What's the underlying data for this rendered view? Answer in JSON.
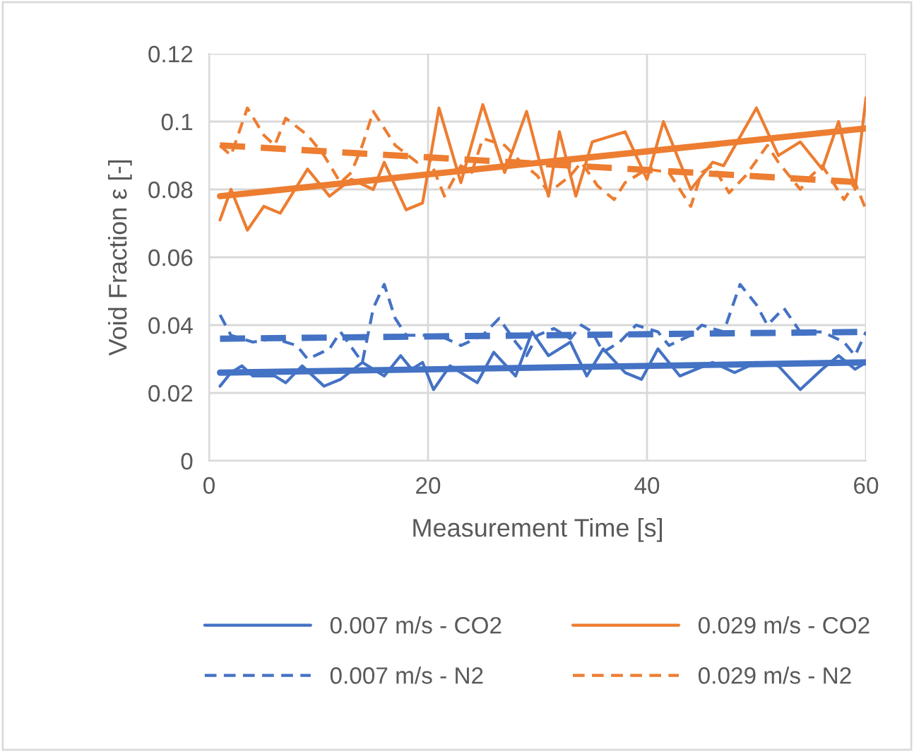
{
  "chart_data": {
    "type": "line",
    "xlabel": "Measurement Time [s]",
    "ylabel": "Void Fraction ε [-]",
    "xlim": [
      0,
      60
    ],
    "xticks": [
      0,
      20,
      40,
      60
    ],
    "ylim": [
      0,
      0.12
    ],
    "yticks": [
      0,
      0.02,
      0.04,
      0.06,
      0.08,
      0.1,
      0.12
    ],
    "grid": true,
    "legend": "bottom",
    "marker": "none",
    "series": [
      {
        "name": "0.007 m/s - CO2",
        "color": "#4472c4",
        "line_style": "solid",
        "x": [
          1,
          2,
          3,
          4,
          6,
          7,
          8.5,
          10.5,
          12,
          14,
          16,
          17.5,
          18.5,
          19.5,
          20.5,
          22,
          23.5,
          24.5,
          26,
          28,
          29.5,
          31,
          33,
          34.5,
          36,
          38,
          39.5,
          41,
          43,
          46,
          48,
          50,
          52,
          54,
          56,
          57.5,
          59,
          60
        ],
        "values": [
          0.022,
          0.026,
          0.028,
          0.025,
          0.025,
          0.023,
          0.028,
          0.022,
          0.024,
          0.029,
          0.025,
          0.031,
          0.027,
          0.029,
          0.021,
          0.028,
          0.025,
          0.023,
          0.032,
          0.025,
          0.038,
          0.031,
          0.035,
          0.025,
          0.033,
          0.026,
          0.024,
          0.033,
          0.025,
          0.029,
          0.026,
          0.029,
          0.028,
          0.021,
          0.027,
          0.031,
          0.027,
          0.029
        ]
      },
      {
        "name": "0.029 m/s - CO2",
        "color": "#ed7d31",
        "line_style": "solid",
        "x": [
          1,
          2,
          3.5,
          5,
          6.5,
          9,
          11,
          13,
          15,
          16,
          18,
          19.5,
          21,
          23,
          25,
          27,
          29,
          31,
          32,
          33.5,
          35,
          36,
          38,
          40,
          41.5,
          44,
          46,
          47,
          50,
          52,
          54,
          56,
          57.5,
          59,
          60
        ],
        "values": [
          0.071,
          0.08,
          0.068,
          0.075,
          0.073,
          0.086,
          0.078,
          0.083,
          0.08,
          0.088,
          0.074,
          0.076,
          0.104,
          0.082,
          0.105,
          0.085,
          0.103,
          0.078,
          0.097,
          0.078,
          0.094,
          0.095,
          0.097,
          0.083,
          0.1,
          0.08,
          0.088,
          0.087,
          0.104,
          0.09,
          0.094,
          0.086,
          0.1,
          0.08,
          0.107
        ]
      },
      {
        "name": "0.007 m/s - N2",
        "color": "#4472c4",
        "line_style": "dashed",
        "x": [
          1,
          2,
          4,
          6,
          8,
          9,
          11,
          12,
          14,
          15,
          16,
          17,
          18,
          21,
          23,
          25,
          26.5,
          28,
          29,
          30,
          31.5,
          33,
          34,
          35,
          36,
          37.5,
          39,
          41,
          42,
          44,
          45,
          47,
          48.5,
          50,
          51,
          52.5,
          54,
          56,
          58,
          59,
          60
        ],
        "values": [
          0.043,
          0.037,
          0.035,
          0.036,
          0.034,
          0.03,
          0.033,
          0.038,
          0.029,
          0.045,
          0.052,
          0.042,
          0.037,
          0.037,
          0.034,
          0.037,
          0.042,
          0.035,
          0.031,
          0.037,
          0.039,
          0.036,
          0.04,
          0.038,
          0.032,
          0.035,
          0.04,
          0.038,
          0.034,
          0.037,
          0.04,
          0.038,
          0.052,
          0.046,
          0.04,
          0.045,
          0.038,
          0.038,
          0.035,
          0.031,
          0.038
        ]
      },
      {
        "name": "0.029 m/s - N2",
        "color": "#ed7d31",
        "line_style": "dashed",
        "x": [
          1,
          2,
          3.5,
          5,
          6,
          7,
          9,
          10.5,
          12,
          13,
          14,
          15,
          17,
          19,
          20,
          21.5,
          23,
          24,
          25,
          27,
          28.5,
          30,
          31,
          33,
          34,
          35.5,
          37,
          38,
          40,
          42,
          44,
          45,
          46,
          47.5,
          49,
          51,
          52,
          54,
          55,
          56,
          58,
          59,
          60
        ],
        "values": [
          0.093,
          0.09,
          0.104,
          0.096,
          0.093,
          0.101,
          0.096,
          0.09,
          0.082,
          0.085,
          0.093,
          0.103,
          0.093,
          0.088,
          0.09,
          0.078,
          0.087,
          0.085,
          0.095,
          0.093,
          0.088,
          0.084,
          0.079,
          0.084,
          0.088,
          0.081,
          0.077,
          0.082,
          0.086,
          0.085,
          0.075,
          0.085,
          0.087,
          0.079,
          0.084,
          0.093,
          0.088,
          0.08,
          0.084,
          0.087,
          0.077,
          0.082,
          0.074
        ]
      },
      {
        "color": "#4472c4",
        "line_style": "solid",
        "x": [
          1,
          60
        ],
        "values": [
          0.026,
          0.029
        ]
      },
      {
        "color": "#ed7d31",
        "line_style": "solid",
        "x": [
          1,
          60
        ],
        "values": [
          0.078,
          0.098
        ]
      },
      {
        "color": "#4472c4",
        "line_style": "dashed",
        "x": [
          1,
          60
        ],
        "values": [
          0.036,
          0.038
        ]
      },
      {
        "color": "#ed7d31",
        "line_style": "dashed",
        "x": [
          1,
          60
        ],
        "values": [
          0.093,
          0.082
        ]
      }
    ]
  }
}
